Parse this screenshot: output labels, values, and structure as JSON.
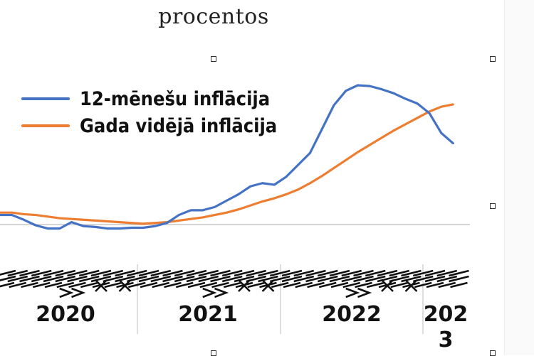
{
  "title": "procentos",
  "legend": {
    "series_1": "12-mēnešu inflācija",
    "series_2": "Gada vidējā inflācija"
  },
  "colors": {
    "series_1": "#4472C4",
    "series_2": "#ED7D31",
    "axis": "#c8c8c8"
  },
  "chart_data": {
    "type": "line",
    "title": "procentos",
    "xlabel": "",
    "ylabel": "",
    "grid": false,
    "legend_position": "top-left",
    "year_labels": [
      "2020",
      "2021",
      "2022",
      "2023"
    ],
    "x": [
      "2020-01",
      "2020-02",
      "2020-03",
      "2020-04",
      "2020-05",
      "2020-06",
      "2020-07",
      "2020-08",
      "2020-09",
      "2020-10",
      "2020-11",
      "2020-12",
      "2021-01",
      "2021-02",
      "2021-03",
      "2021-04",
      "2021-05",
      "2021-06",
      "2021-07",
      "2021-08",
      "2021-09",
      "2021-10",
      "2021-11",
      "2021-12",
      "2022-01",
      "2022-02",
      "2022-03",
      "2022-04",
      "2022-05",
      "2022-06",
      "2022-07",
      "2022-08",
      "2022-09",
      "2022-10",
      "2022-11",
      "2022-12",
      "2023-01",
      "2023-02",
      "2023-03"
    ],
    "ylim": [
      -1.5,
      23
    ],
    "series": [
      {
        "name": "12-mēnešu inflācija",
        "values": [
          1.2,
          1.2,
          0.6,
          -0.1,
          -0.5,
          -0.5,
          0.3,
          -0.2,
          -0.3,
          -0.5,
          -0.5,
          -0.4,
          -0.4,
          -0.2,
          0.2,
          1.2,
          1.8,
          1.8,
          2.2,
          3.0,
          3.8,
          4.8,
          5.2,
          5.0,
          6.0,
          7.5,
          9.0,
          12.0,
          15.0,
          16.8,
          17.5,
          17.4,
          17.0,
          16.5,
          15.8,
          15.2,
          14.0,
          11.5,
          10.2
        ]
      },
      {
        "name": "Gada vidējā inflācija",
        "values": [
          1.5,
          1.5,
          1.3,
          1.2,
          1.0,
          0.8,
          0.7,
          0.6,
          0.5,
          0.4,
          0.3,
          0.2,
          0.1,
          0.2,
          0.3,
          0.5,
          0.7,
          0.9,
          1.2,
          1.5,
          1.9,
          2.4,
          2.9,
          3.3,
          3.8,
          4.4,
          5.2,
          6.1,
          7.1,
          8.1,
          9.1,
          10.0,
          10.9,
          11.8,
          12.6,
          13.4,
          14.2,
          14.8,
          15.1
        ]
      }
    ]
  }
}
